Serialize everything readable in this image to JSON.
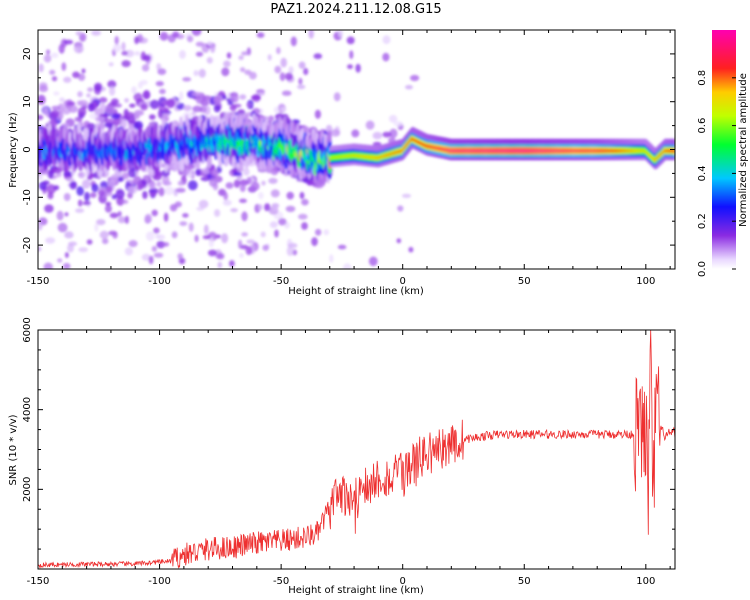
{
  "title": "PAZ1.2024.211.12.08.G15",
  "chart_data": [
    {
      "type": "heatmap",
      "xlabel": "Height of straight line (km)",
      "ylabel": "Frequency (Hz)",
      "xlim": [
        -150,
        112
      ],
      "ylim": [
        -25,
        25
      ],
      "x_ticks": [
        -150,
        -100,
        -50,
        0,
        50,
        100
      ],
      "y_ticks": [
        -20,
        -10,
        0,
        10,
        20
      ],
      "colorbar": {
        "label": "Normalized spectral amplitude",
        "ticks": [
          "0.0",
          "0.2",
          "0.4",
          "0.6",
          "0.8"
        ],
        "range": [
          0,
          1
        ],
        "colormap": "rainbow (white, purple, blue, cyan, green, yellow, red, magenta)"
      },
      "ridge_center_freq_hz": [
        [
          -150,
          0
        ],
        [
          -130,
          0
        ],
        [
          -110,
          0
        ],
        [
          -90,
          1.5
        ],
        [
          -70,
          2
        ],
        [
          -50,
          1
        ],
        [
          -40,
          -1
        ],
        [
          -35,
          -2
        ],
        [
          -30,
          -1.5
        ],
        [
          -20,
          -1
        ],
        [
          -10,
          -1.5
        ],
        [
          0,
          0
        ],
        [
          4,
          2.5
        ],
        [
          10,
          1
        ],
        [
          20,
          0
        ],
        [
          50,
          0
        ],
        [
          90,
          0
        ],
        [
          100,
          0
        ],
        [
          104,
          -2
        ],
        [
          108,
          0
        ],
        [
          112,
          0
        ]
      ],
      "ridge_peak_amplitude": [
        [
          -150,
          0.3
        ],
        [
          -100,
          0.35
        ],
        [
          -80,
          0.45
        ],
        [
          -60,
          0.5
        ],
        [
          -40,
          0.6
        ],
        [
          -20,
          0.7
        ],
        [
          0,
          0.8
        ],
        [
          10,
          0.85
        ],
        [
          20,
          0.95
        ],
        [
          50,
          0.98
        ],
        [
          80,
          0.9
        ],
        [
          100,
          0.7
        ],
        [
          112,
          0.85
        ]
      ]
    },
    {
      "type": "line",
      "xlabel": "Height of straight line (km)",
      "ylabel": "SNR (10 * v/v)",
      "xlim": [
        -150,
        112
      ],
      "ylim": [
        0,
        6000
      ],
      "x_ticks": [
        -150,
        -100,
        -50,
        0,
        50,
        100
      ],
      "y_ticks": [
        2000,
        4000,
        6000
      ],
      "line_color": "#ee3030",
      "series": [
        {
          "x": [
            -150,
            -130,
            -110,
            -95,
            -90,
            -80,
            -70,
            -60,
            -50,
            -45,
            -40,
            -35,
            -32,
            -28,
            -25,
            -20,
            -15,
            -10,
            -5,
            0,
            5,
            10,
            15,
            20,
            25,
            30,
            35,
            40,
            50,
            60,
            70,
            80,
            90,
            95,
            98,
            100,
            101,
            102,
            103,
            104,
            106,
            108,
            110,
            112
          ],
          "y": [
            100,
            120,
            130,
            200,
            350,
            500,
            550,
            650,
            700,
            750,
            800,
            900,
            1300,
            1700,
            1800,
            1900,
            2100,
            2300,
            2300,
            2400,
            2700,
            2900,
            3000,
            3100,
            3250,
            3300,
            3350,
            3380,
            3380,
            3380,
            3380,
            3380,
            3380,
            3390,
            3400,
            3500,
            2000,
            5000,
            1500,
            4000,
            3500,
            3350,
            3380,
            3400
          ]
        }
      ]
    }
  ]
}
